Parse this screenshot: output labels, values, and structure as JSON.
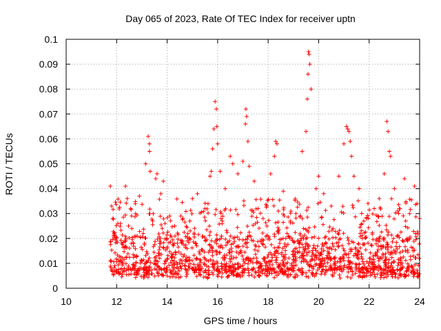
{
  "chart_data": {
    "type": "scatter",
    "title": "Day 065 of 2023, Rate Of TEC Index for receiver uptn",
    "xlabel": "GPS time / hours",
    "ylabel": "ROTI / TECUs",
    "xlim": [
      10,
      24
    ],
    "ylim": [
      0,
      0.1
    ],
    "x_ticks": [
      10,
      12,
      14,
      16,
      18,
      20,
      22,
      24
    ],
    "y_ticks": [
      0,
      0.01,
      0.02,
      0.03,
      0.04,
      0.05,
      0.06,
      0.07,
      0.08,
      0.09,
      0.1
    ],
    "grid": true,
    "marker": "+",
    "series_color": "#ff0000",
    "series": [
      {
        "name": "ROTI",
        "x": [
          11.75,
          11.8,
          11.85,
          11.9,
          11.95,
          12.05,
          12.2,
          12.35,
          12.42,
          12.6,
          12.75,
          12.9,
          13.05,
          13.15,
          13.25,
          13.3,
          13.3,
          13.33,
          13.45,
          13.55,
          13.6,
          13.75,
          13.85,
          14.1,
          14.3,
          14.6,
          14.9,
          15.2,
          15.5,
          15.7,
          15.75,
          15.8,
          15.85,
          15.9,
          15.95,
          15.97,
          16.0,
          16.1,
          16.3,
          16.5,
          16.6,
          16.8,
          17.0,
          17.1,
          17.12,
          17.15,
          17.2,
          17.25,
          17.45,
          17.6,
          17.8,
          17.95,
          18.1,
          18.25,
          18.3,
          18.35,
          18.6,
          18.9,
          19.1,
          19.35,
          19.5,
          19.55,
          19.58,
          19.6,
          19.62,
          19.65,
          19.7,
          19.9,
          20.0,
          20.2,
          20.5,
          20.8,
          21.0,
          21.1,
          21.15,
          21.2,
          21.25,
          21.3,
          21.4,
          21.6,
          21.9,
          22.2,
          22.4,
          22.6,
          22.7,
          22.75,
          22.8,
          22.85,
          23.0,
          23.2,
          23.4,
          23.6,
          23.8,
          23.9,
          24.0
        ],
        "y": [
          0.041,
          0.033,
          0.028,
          0.022,
          0.02,
          0.026,
          0.018,
          0.041,
          0.036,
          0.024,
          0.03,
          0.037,
          0.022,
          0.05,
          0.061,
          0.058,
          0.055,
          0.047,
          0.03,
          0.044,
          0.046,
          0.038,
          0.043,
          0.029,
          0.025,
          0.018,
          0.027,
          0.038,
          0.032,
          0.045,
          0.047,
          0.056,
          0.064,
          0.075,
          0.072,
          0.065,
          0.058,
          0.047,
          0.04,
          0.053,
          0.05,
          0.046,
          0.051,
          0.066,
          0.072,
          0.069,
          0.059,
          0.049,
          0.043,
          0.032,
          0.028,
          0.025,
          0.046,
          0.053,
          0.059,
          0.058,
          0.039,
          0.031,
          0.03,
          0.055,
          0.063,
          0.076,
          0.086,
          0.095,
          0.094,
          0.09,
          0.08,
          0.04,
          0.045,
          0.038,
          0.033,
          0.045,
          0.058,
          0.065,
          0.064,
          0.063,
          0.059,
          0.053,
          0.045,
          0.04,
          0.028,
          0.032,
          0.036,
          0.046,
          0.067,
          0.063,
          0.055,
          0.053,
          0.04,
          0.032,
          0.044,
          0.03,
          0.041,
          0.034,
          0.028
        ]
      }
    ],
    "background_band": {
      "description": "dense cloud of ROTI points between roughly 0.004 and 0.02 TECUs from 11.75 to 24 hours",
      "x_range": [
        11.75,
        24
      ],
      "y_range": [
        0.004,
        0.02
      ]
    }
  }
}
